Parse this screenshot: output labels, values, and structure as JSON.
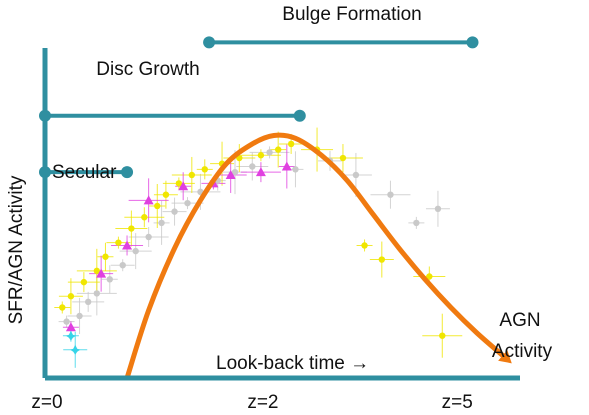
{
  "chart_data": {
    "type": "scatter",
    "title": "",
    "ylabel": "SFR/AGN Activity",
    "xlabel": "Look-back time →",
    "x_ticks": [
      {
        "label": "z=0",
        "x": 0.0
      },
      {
        "label": "z=2",
        "x": 0.5
      },
      {
        "label": "z=5",
        "x": 0.95
      }
    ],
    "xlim": [
      0,
      1.1
    ],
    "ylim": [
      0,
      1
    ],
    "grid": false,
    "phases": [
      {
        "name": "Bulge Formation",
        "start": 0.38,
        "end": 0.99,
        "level": 1.19
      },
      {
        "name": "Disc Growth",
        "start": 0.0,
        "end": 0.59,
        "level": 0.93
      },
      {
        "name": "Secular",
        "start": 0.0,
        "end": 0.19,
        "level": 0.73
      }
    ],
    "curve": {
      "name": "AGN Activity",
      "label_lines": [
        "AGN",
        "Activity"
      ],
      "color": "#f07a10",
      "x": [
        0.19,
        0.24,
        0.3,
        0.36,
        0.42,
        0.48,
        0.53,
        0.58,
        0.64,
        0.7,
        0.76,
        0.82,
        0.88,
        0.94,
        1.0,
        1.06
      ],
      "y": [
        0.0,
        0.24,
        0.46,
        0.63,
        0.76,
        0.83,
        0.86,
        0.85,
        0.79,
        0.7,
        0.58,
        0.46,
        0.35,
        0.25,
        0.16,
        0.08
      ]
    },
    "series": [
      {
        "color": "#f0e600",
        "marker": "circle",
        "x": [
          0.04,
          0.06,
          0.09,
          0.12,
          0.14,
          0.17,
          0.2,
          0.23,
          0.26,
          0.28,
          0.31,
          0.34,
          0.37,
          0.41,
          0.45,
          0.5,
          0.54,
          0.57,
          0.63,
          0.69,
          0.74,
          0.78,
          0.89,
          0.92
        ],
        "y": [
          0.25,
          0.29,
          0.34,
          0.38,
          0.43,
          0.48,
          0.53,
          0.57,
          0.61,
          0.65,
          0.69,
          0.72,
          0.74,
          0.76,
          0.78,
          0.79,
          0.81,
          0.83,
          0.81,
          0.78,
          0.47,
          0.42,
          0.36,
          0.15
        ]
      },
      {
        "color": "#e040e0",
        "marker": "triangle",
        "x": [
          0.06,
          0.13,
          0.19,
          0.24,
          0.32,
          0.39,
          0.43,
          0.5,
          0.56
        ],
        "y": [
          0.18,
          0.37,
          0.47,
          0.63,
          0.68,
          0.69,
          0.72,
          0.73,
          0.75
        ]
      },
      {
        "color": "#c9c9c9",
        "marker": "circle",
        "x": [
          0.05,
          0.08,
          0.1,
          0.12,
          0.15,
          0.18,
          0.21,
          0.24,
          0.27,
          0.3,
          0.33,
          0.36,
          0.4,
          0.44,
          0.48,
          0.52,
          0.58,
          0.66,
          0.72,
          0.8,
          0.86,
          0.91
        ],
        "y": [
          0.2,
          0.22,
          0.27,
          0.3,
          0.35,
          0.4,
          0.45,
          0.5,
          0.55,
          0.59,
          0.62,
          0.66,
          0.7,
          0.73,
          0.75,
          0.8,
          0.74,
          0.77,
          0.72,
          0.65,
          0.55,
          0.6
        ]
      },
      {
        "color": "#35d4e8",
        "marker": "star",
        "x": [
          0.06,
          0.07
        ],
        "y": [
          0.15,
          0.1
        ]
      }
    ]
  }
}
